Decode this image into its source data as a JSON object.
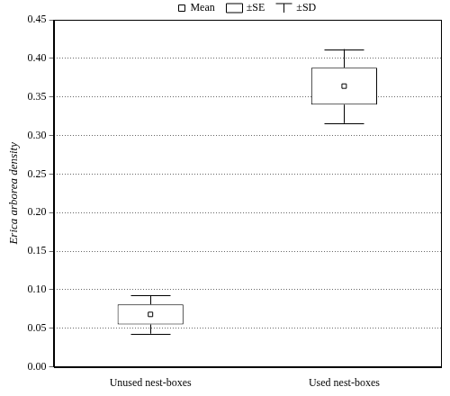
{
  "chart_data": {
    "type": "box",
    "y_label": "Erica arborea density",
    "categories": [
      "Unused nest-boxes",
      "Used nest-boxes"
    ],
    "series": [
      {
        "name": "Mean",
        "values": [
          0.068,
          0.364
        ],
        "marker": "square"
      },
      {
        "name": "±SE",
        "values": [
          0.013,
          0.024
        ]
      },
      {
        "name": "±SD",
        "values": [
          0.025,
          0.048
        ]
      }
    ],
    "color": "#000000",
    "ylim": [
      0,
      0.45
    ],
    "yticks": [
      {
        "value": 0,
        "label": "0.00"
      },
      {
        "value": 0.05,
        "label": "0.05"
      },
      {
        "value": 0.1,
        "label": "0.10"
      },
      {
        "value": 0.15,
        "label": "0.15"
      },
      {
        "value": 0.2,
        "label": "0.20"
      },
      {
        "value": 0.25,
        "label": "0.25"
      },
      {
        "value": 0.3,
        "label": "0.30"
      },
      {
        "value": 0.35,
        "label": "0.35"
      },
      {
        "value": 0.4,
        "label": "0.40"
      },
      {
        "value": 0.45,
        "label": "0.45"
      }
    ],
    "grid": true,
    "legend": "top"
  }
}
